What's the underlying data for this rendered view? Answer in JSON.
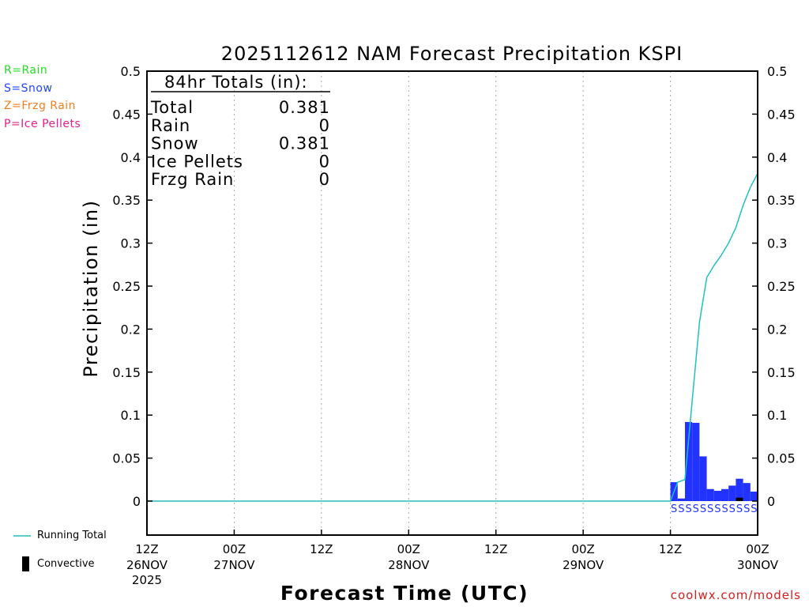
{
  "chart_data": {
    "type": "bar",
    "title": "2025112612 NAM Forecast Precipitation KSPI",
    "xlabel": "Forecast Time (UTC)",
    "ylabel": "Precipitation (in)",
    "ylim": [
      -0.04,
      0.5
    ],
    "yticks": [
      0,
      0.05,
      0.1,
      0.15,
      0.2,
      0.25,
      0.3,
      0.35,
      0.4,
      0.45,
      0.5
    ],
    "ytick_labels": [
      "0",
      "0.05",
      "0.1",
      "0.15",
      "0.2",
      "0.25",
      "0.3",
      "0.35",
      "0.4",
      "0.45",
      "0.5"
    ],
    "xlim_hours": [
      0,
      84
    ],
    "xticks": [
      {
        "hour": 0,
        "time": "12Z",
        "date": "26NOV",
        "year": "2025"
      },
      {
        "hour": 12,
        "time": "00Z",
        "date": "27NOV",
        "year": ""
      },
      {
        "hour": 24,
        "time": "12Z",
        "date": "",
        "year": ""
      },
      {
        "hour": 36,
        "time": "00Z",
        "date": "28NOV",
        "year": ""
      },
      {
        "hour": 48,
        "time": "12Z",
        "date": "",
        "year": ""
      },
      {
        "hour": 60,
        "time": "00Z",
        "date": "29NOV",
        "year": ""
      },
      {
        "hour": 72,
        "time": "12Z",
        "date": "",
        "year": ""
      },
      {
        "hour": 84,
        "time": "00Z",
        "date": "30NOV",
        "year": ""
      }
    ],
    "bar_width_hours": 1,
    "series": [
      {
        "name": "Snow",
        "color": "#2233ff",
        "hours": [
          73,
          74,
          75,
          76,
          77,
          78,
          79,
          80,
          81,
          82,
          83,
          84
        ],
        "values": [
          0.022,
          0.003,
          0.092,
          0.091,
          0.052,
          0.014,
          0.012,
          0.014,
          0.018,
          0.026,
          0.021,
          0.011
        ]
      },
      {
        "name": "Convective",
        "color": "#000000",
        "hours": [
          82
        ],
        "values": [
          0.004
        ]
      }
    ],
    "running_total": {
      "name": "Running Total",
      "color": "#20c0c0",
      "hours": [
        0,
        72,
        73,
        74,
        75,
        76,
        77,
        78,
        79,
        80,
        81,
        82,
        83,
        84
      ],
      "values": [
        0,
        0,
        0.022,
        0.025,
        0.117,
        0.208,
        0.26,
        0.274,
        0.286,
        0.3,
        0.318,
        0.344,
        0.365,
        0.381
      ]
    },
    "ptype_markers": {
      "char": "S",
      "color": "#2233ff",
      "hours": [
        73,
        74,
        75,
        76,
        77,
        78,
        79,
        80,
        81,
        82,
        83,
        84
      ]
    },
    "totals_box": {
      "heading": "84hr Totals (in):",
      "rows": [
        {
          "label": "Total",
          "value": "0.381"
        },
        {
          "label": "Rain",
          "value": "0"
        },
        {
          "label": "Snow",
          "value": "0.381"
        },
        {
          "label": "Ice Pellets",
          "value": "0"
        },
        {
          "label": "Frzg Rain",
          "value": "0"
        }
      ]
    }
  },
  "legend": {
    "rain": {
      "text": "R=Rain",
      "color": "#22dd22"
    },
    "snow": {
      "text": "S=Snow",
      "color": "#2244ff"
    },
    "frzg_rain": {
      "text": "Z=Frzg Rain",
      "color": "#f08020"
    },
    "ice_pellets": {
      "text": "P=Ice Pellets",
      "color": "#e0208a"
    }
  },
  "bottom_legend": {
    "running_total": "Running Total",
    "convective": "Convective"
  },
  "credit": "coolwx.com/models"
}
